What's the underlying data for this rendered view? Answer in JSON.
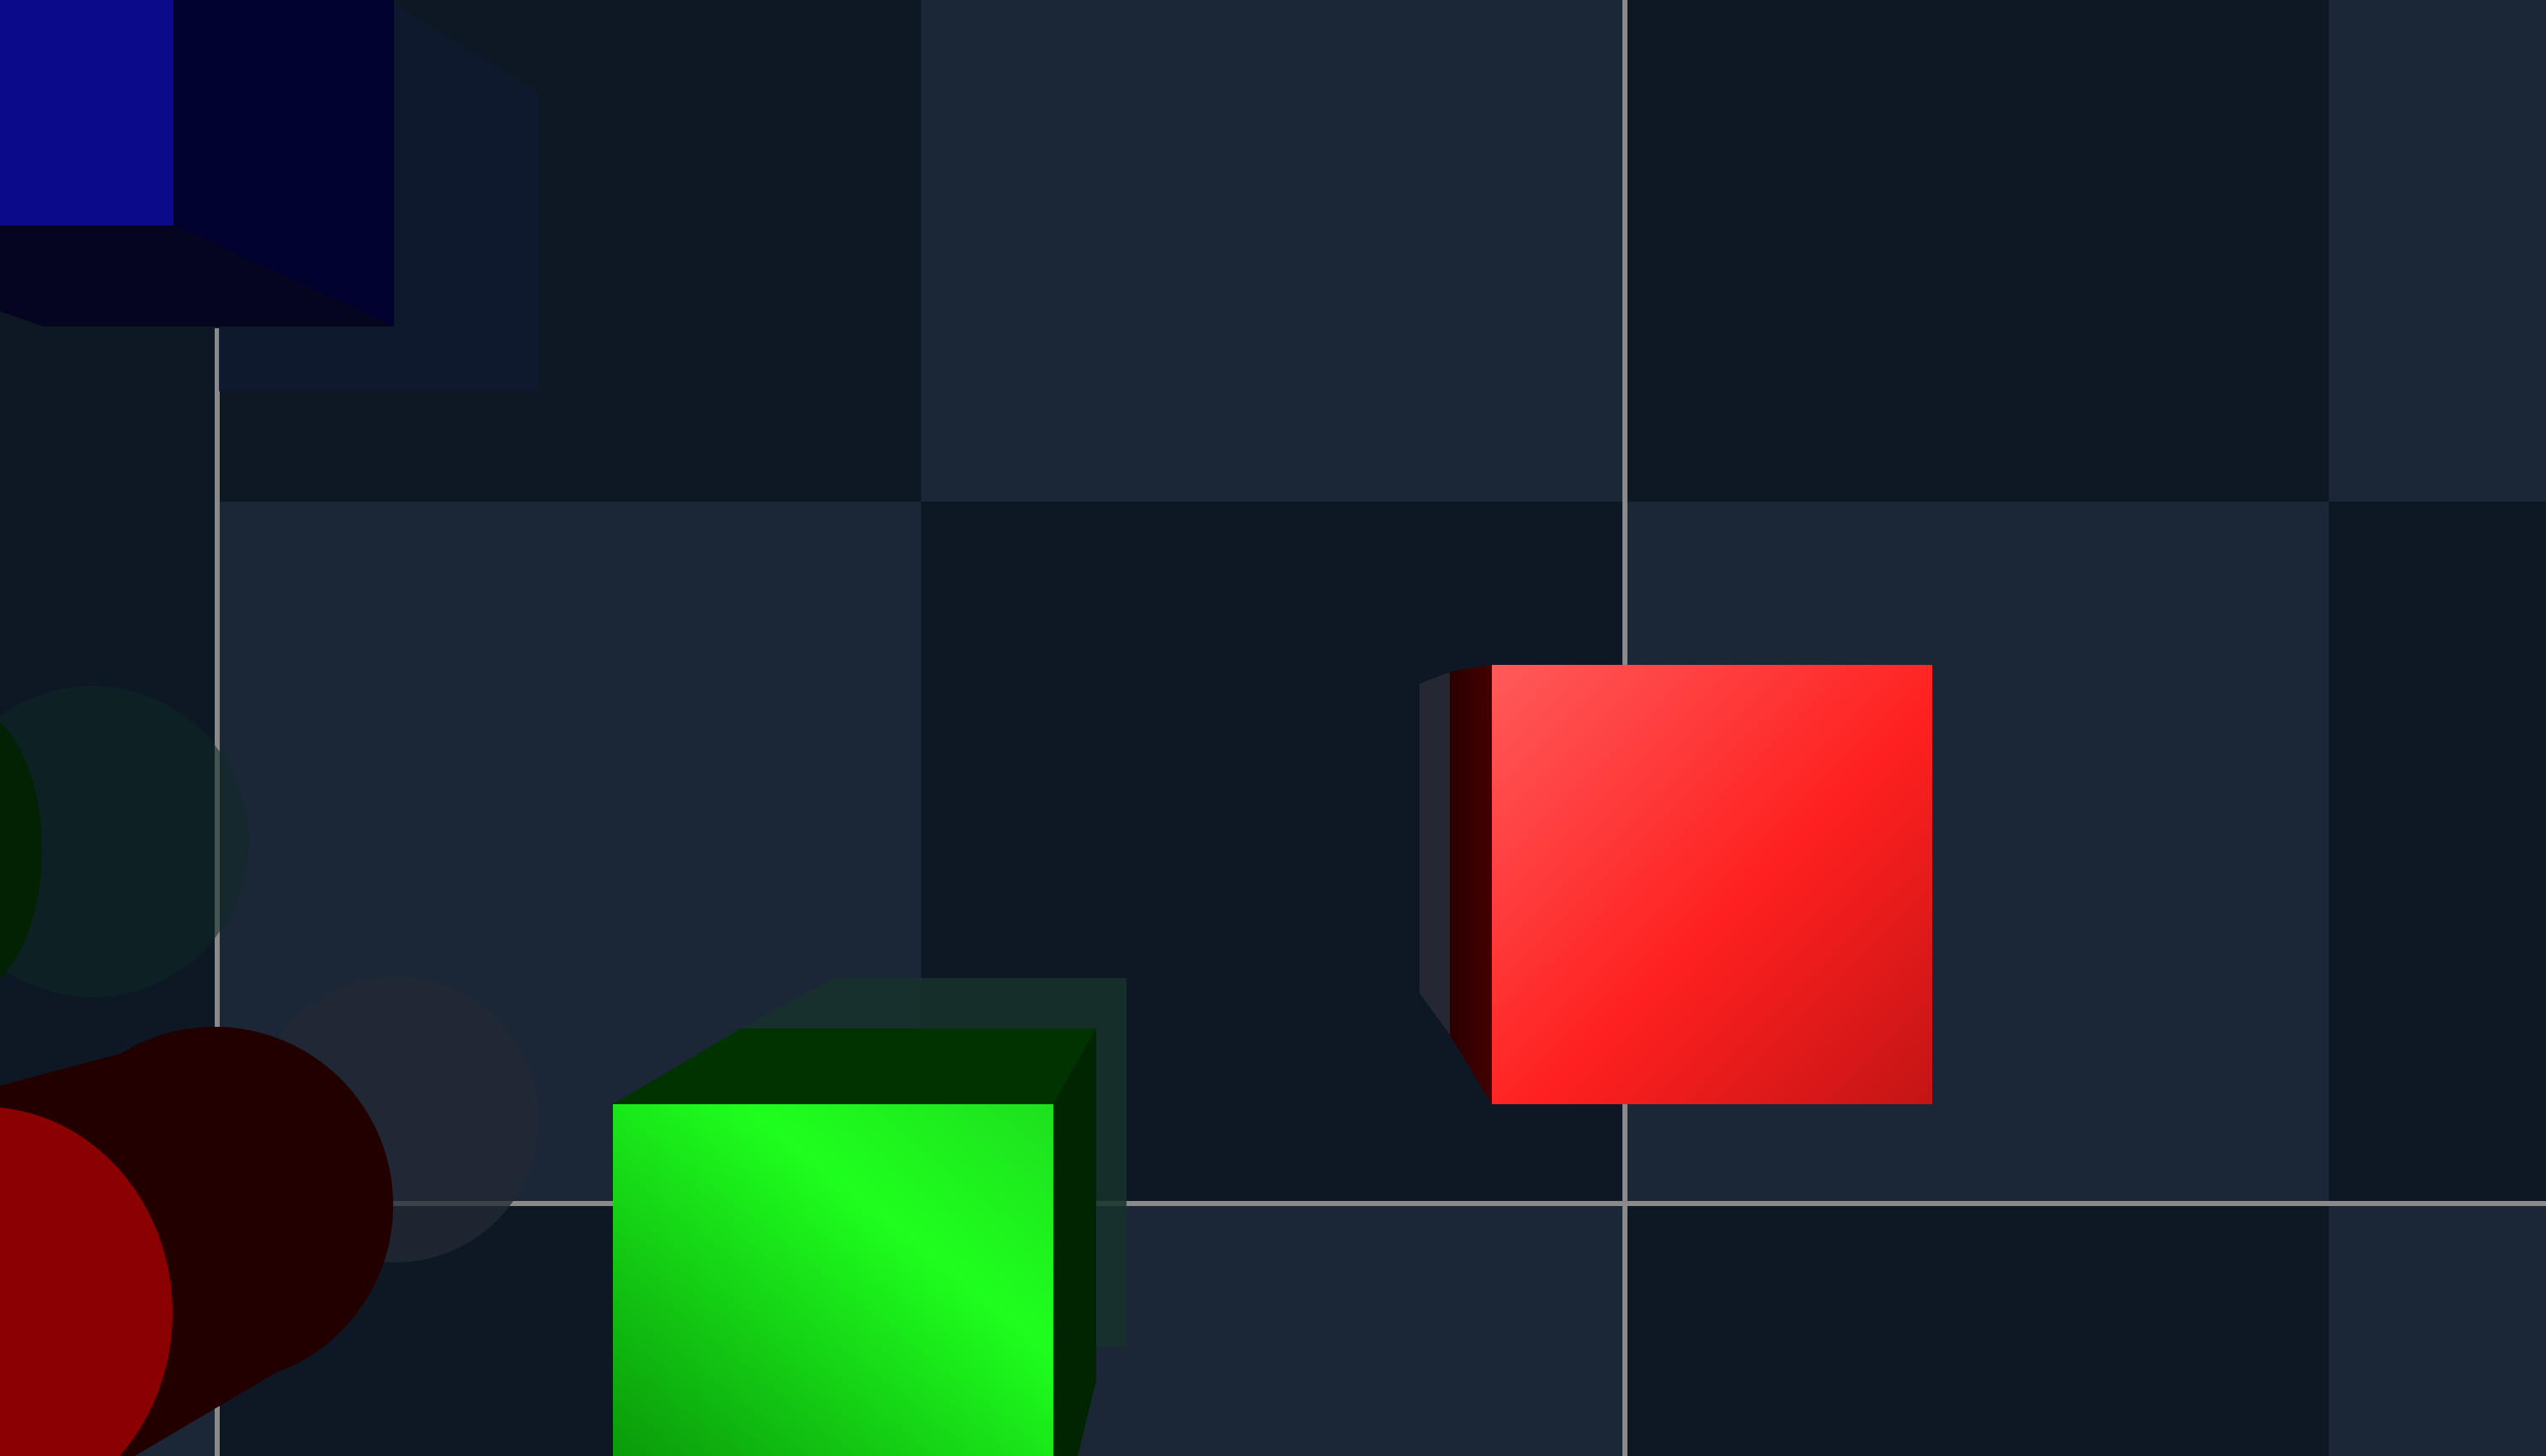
{
  "scene": {
    "kind": "3d-block-puzzle-viewport",
    "checker_colors": {
      "light": "#1b2636",
      "dark": "#0d1824"
    },
    "grid_line_color": "#8a8a8a",
    "objects": [
      {
        "name": "blue-cube",
        "shape": "cube",
        "color": "#0a0a8a"
      },
      {
        "name": "red-cube",
        "shape": "cube",
        "color": "#ff2020"
      },
      {
        "name": "green-cube",
        "shape": "cube",
        "color": "#1ee01e"
      },
      {
        "name": "red-cylinder",
        "shape": "cylinder",
        "color": "#8b0000"
      },
      {
        "name": "green-cylinder",
        "shape": "cylinder",
        "color": "#032203"
      }
    ],
    "icons": [
      "cube-icon",
      "cylinder-icon"
    ]
  }
}
